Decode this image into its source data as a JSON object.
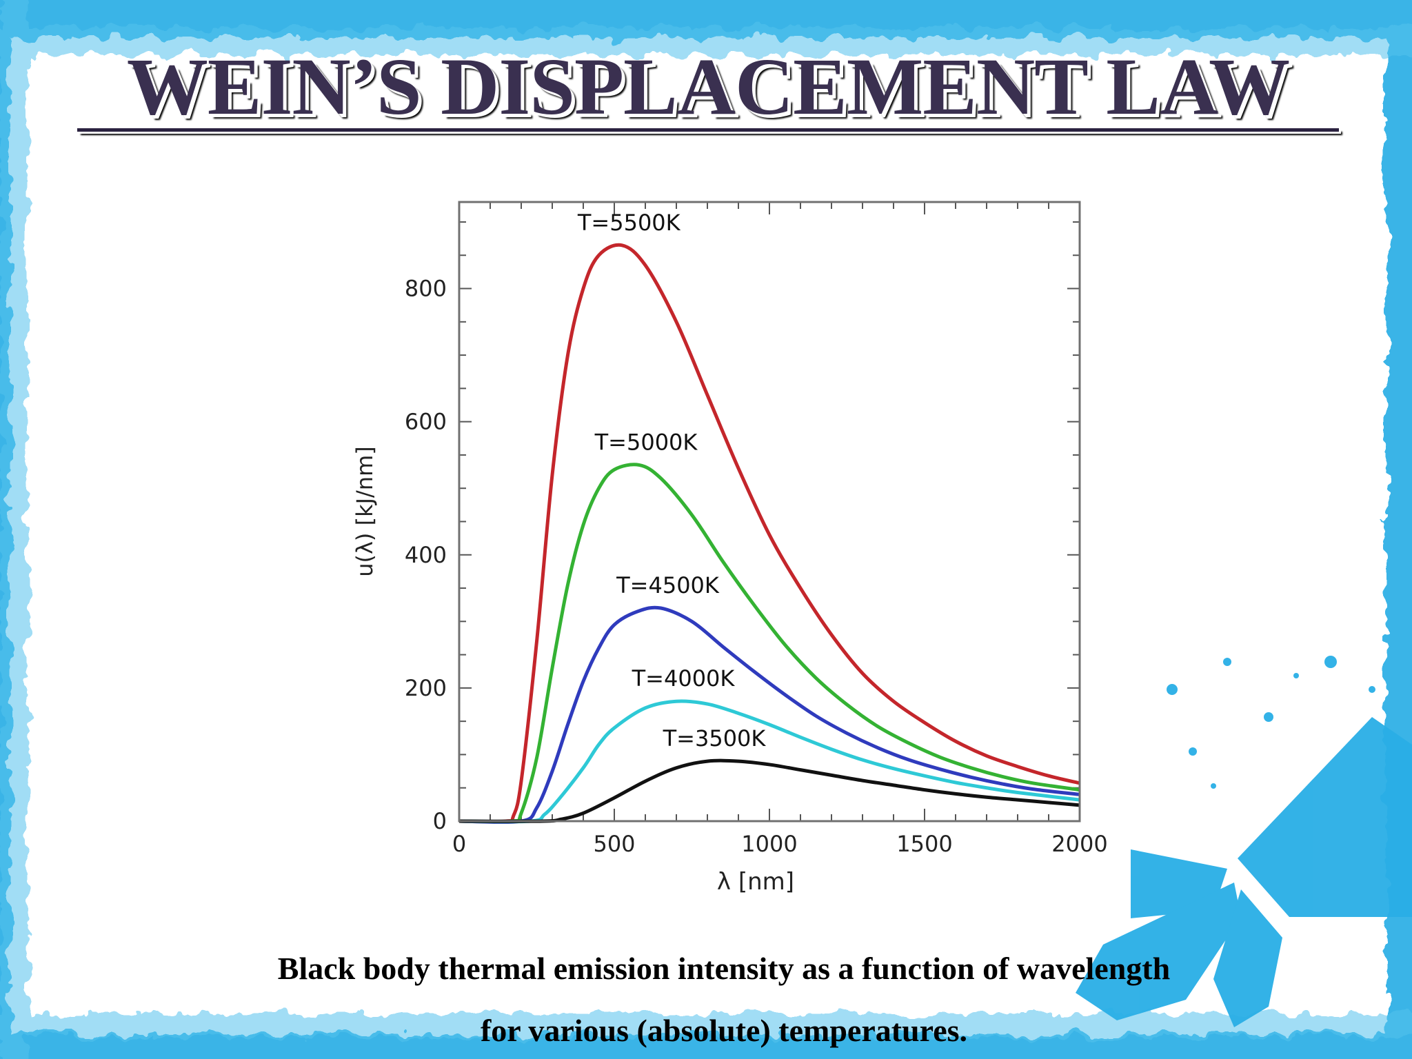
{
  "slide": {
    "title": "WEIN’S DISPLACEMENT LAW",
    "caption_line1": "Black body thermal emission intensity as a function of wavelength",
    "caption_line2": "for various (absolute) temperatures.",
    "accent_color": "#29aee6"
  },
  "chart_data": {
    "type": "line",
    "title": "",
    "xlabel": "λ [nm]",
    "ylabel": "u(λ) [kJ/nm]",
    "xlim": [
      0,
      2000
    ],
    "ylim": [
      0,
      930
    ],
    "xticks": [
      0,
      500,
      1000,
      1500,
      2000
    ],
    "yticks": [
      0,
      200,
      400,
      600,
      800
    ],
    "grid": false,
    "legend": "none",
    "series": [
      {
        "name": "T=5500K",
        "color": "#c4262b",
        "points": [
          [
            0,
            0
          ],
          [
            150,
            0
          ],
          [
            175,
            8
          ],
          [
            200,
            60
          ],
          [
            250,
            270
          ],
          [
            300,
            520
          ],
          [
            350,
            700
          ],
          [
            400,
            800
          ],
          [
            450,
            850
          ],
          [
            525,
            865
          ],
          [
            600,
            835
          ],
          [
            700,
            750
          ],
          [
            800,
            640
          ],
          [
            900,
            530
          ],
          [
            1000,
            430
          ],
          [
            1100,
            350
          ],
          [
            1200,
            280
          ],
          [
            1300,
            222
          ],
          [
            1400,
            180
          ],
          [
            1500,
            148
          ],
          [
            1600,
            120
          ],
          [
            1700,
            98
          ],
          [
            1800,
            82
          ],
          [
            1900,
            68
          ],
          [
            2000,
            57
          ]
        ]
      },
      {
        "name": "T=5000K",
        "color": "#34b233",
        "points": [
          [
            0,
            0
          ],
          [
            170,
            0
          ],
          [
            200,
            12
          ],
          [
            250,
            95
          ],
          [
            300,
            230
          ],
          [
            350,
            355
          ],
          [
            400,
            445
          ],
          [
            450,
            500
          ],
          [
            500,
            528
          ],
          [
            580,
            535
          ],
          [
            650,
            515
          ],
          [
            750,
            460
          ],
          [
            850,
            390
          ],
          [
            950,
            325
          ],
          [
            1050,
            265
          ],
          [
            1150,
            215
          ],
          [
            1250,
            175
          ],
          [
            1350,
            142
          ],
          [
            1450,
            117
          ],
          [
            1550,
            96
          ],
          [
            1650,
            80
          ],
          [
            1750,
            67
          ],
          [
            1850,
            57
          ],
          [
            2000,
            47
          ]
        ]
      },
      {
        "name": "T=4500K",
        "color": "#2f3bbd",
        "points": [
          [
            0,
            0
          ],
          [
            200,
            0
          ],
          [
            250,
            20
          ],
          [
            300,
            75
          ],
          [
            350,
            145
          ],
          [
            400,
            210
          ],
          [
            450,
            260
          ],
          [
            500,
            295
          ],
          [
            575,
            315
          ],
          [
            650,
            320
          ],
          [
            750,
            300
          ],
          [
            850,
            262
          ],
          [
            950,
            225
          ],
          [
            1050,
            190
          ],
          [
            1150,
            158
          ],
          [
            1250,
            132
          ],
          [
            1350,
            110
          ],
          [
            1450,
            92
          ],
          [
            1550,
            78
          ],
          [
            1650,
            66
          ],
          [
            1750,
            56
          ],
          [
            1850,
            48
          ],
          [
            2000,
            40
          ]
        ]
      },
      {
        "name": "T=4000K",
        "color": "#2ec9d6",
        "points": [
          [
            0,
            0
          ],
          [
            230,
            0
          ],
          [
            275,
            10
          ],
          [
            325,
            35
          ],
          [
            400,
            80
          ],
          [
            450,
            115
          ],
          [
            500,
            140
          ],
          [
            600,
            170
          ],
          [
            700,
            180
          ],
          [
            800,
            176
          ],
          [
            900,
            162
          ],
          [
            1000,
            145
          ],
          [
            1100,
            126
          ],
          [
            1200,
            108
          ],
          [
            1300,
            92
          ],
          [
            1400,
            79
          ],
          [
            1500,
            68
          ],
          [
            1600,
            58
          ],
          [
            1700,
            50
          ],
          [
            1800,
            43
          ],
          [
            2000,
            32
          ]
        ]
      },
      {
        "name": "T=3500K",
        "color": "#111111",
        "points": [
          [
            0,
            0
          ],
          [
            270,
            0
          ],
          [
            330,
            3
          ],
          [
            400,
            12
          ],
          [
            500,
            35
          ],
          [
            600,
            60
          ],
          [
            700,
            80
          ],
          [
            800,
            90
          ],
          [
            900,
            90
          ],
          [
            1000,
            85
          ],
          [
            1100,
            77
          ],
          [
            1200,
            69
          ],
          [
            1300,
            61
          ],
          [
            1400,
            54
          ],
          [
            1500,
            47
          ],
          [
            1600,
            41
          ],
          [
            1700,
            36
          ],
          [
            1800,
            32
          ],
          [
            1900,
            28
          ],
          [
            2000,
            24
          ]
        ]
      }
    ]
  }
}
